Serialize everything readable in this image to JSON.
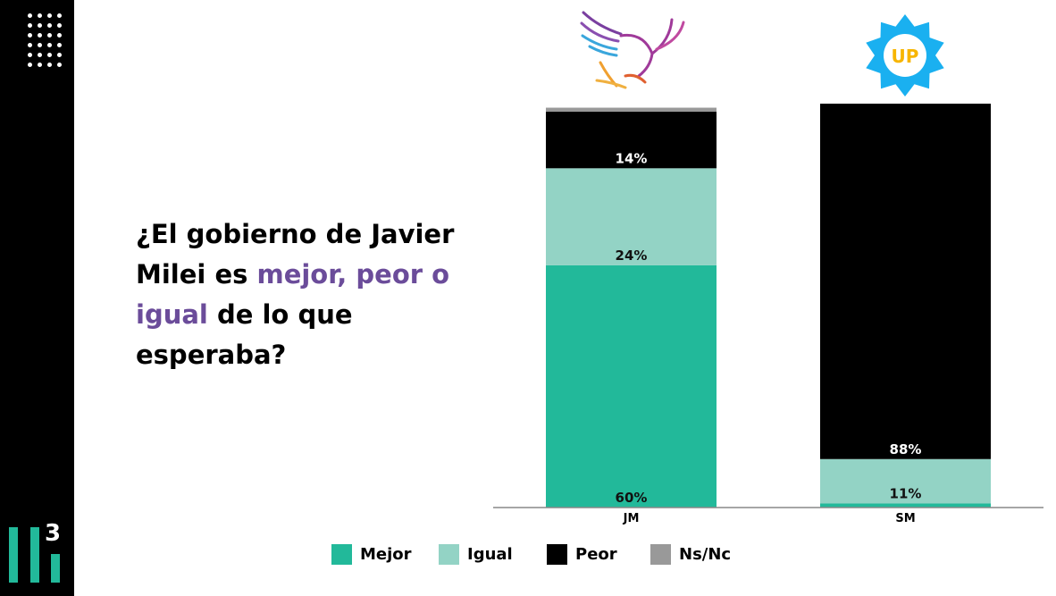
{
  "question": {
    "part1": "¿El gobierno de Javier Milei es ",
    "highlight": "mejor, peor o igual",
    "part2": " de lo que esperaba?"
  },
  "brand": {
    "logo_text": "3"
  },
  "logos": [
    {
      "name": "eagle-logo"
    },
    {
      "name": "up-logo",
      "text": "UP"
    }
  ],
  "colors": {
    "Mejor": "#22b99a",
    "Igual": "#93d3c5",
    "Peor": "#000000",
    "Ns/Nc": "#999999",
    "highlight": "#6b4c9a"
  },
  "chart_data": {
    "type": "bar",
    "stacked": true,
    "categories": [
      "JM",
      "SM"
    ],
    "series": [
      {
        "name": "Mejor",
        "values": [
          60,
          1
        ],
        "labels": [
          "60%",
          ""
        ]
      },
      {
        "name": "Igual",
        "values": [
          24,
          11
        ],
        "labels": [
          "24%",
          "11%"
        ]
      },
      {
        "name": "Peor",
        "values": [
          14,
          88
        ],
        "labels": [
          "14%",
          "88%"
        ]
      },
      {
        "name": "Ns/Nc",
        "values": [
          1,
          0
        ],
        "labels": [
          "",
          ""
        ]
      }
    ],
    "ylim": [
      0,
      100
    ],
    "grid": false,
    "legend": "bottom"
  }
}
